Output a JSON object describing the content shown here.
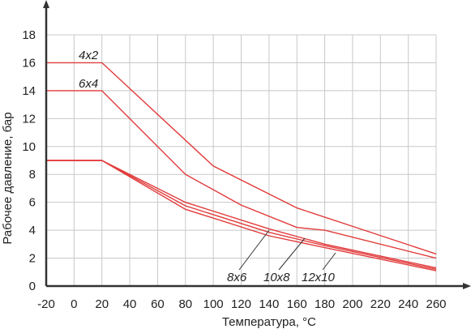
{
  "chart_data": {
    "type": "line",
    "xlabel": "Температура, °C",
    "ylabel": "Рабочее давление, бар",
    "xlim": [
      -20,
      260
    ],
    "ylim": [
      0,
      18
    ],
    "x_ticks": [
      -20,
      0,
      20,
      40,
      60,
      80,
      100,
      120,
      140,
      160,
      180,
      200,
      220,
      240,
      260
    ],
    "y_ticks": [
      0,
      2,
      4,
      6,
      8,
      10,
      12,
      14,
      16,
      18
    ],
    "grid": true,
    "line_color": "#e23b3b",
    "series": [
      {
        "name": "4x2",
        "x": [
          -20,
          20,
          100,
          160,
          260
        ],
        "y": [
          16,
          16,
          8.6,
          5.6,
          2.3
        ]
      },
      {
        "name": "6x4",
        "x": [
          -20,
          20,
          80,
          120,
          160,
          180,
          260
        ],
        "y": [
          14,
          14,
          8,
          5.8,
          4.2,
          4.0,
          2.0
        ]
      },
      {
        "name": "8x6",
        "x": [
          -20,
          20,
          80,
          140,
          180,
          260
        ],
        "y": [
          9,
          9,
          6,
          4.1,
          3.0,
          1.3
        ]
      },
      {
        "name": "10x8",
        "x": [
          -20,
          20,
          80,
          140,
          180,
          260
        ],
        "y": [
          9,
          9,
          5.75,
          3.85,
          2.9,
          1.2
        ]
      },
      {
        "name": "12x10",
        "x": [
          -20,
          20,
          80,
          140,
          180,
          260
        ],
        "y": [
          9,
          9,
          5.5,
          3.6,
          2.75,
          1.1
        ]
      }
    ]
  }
}
